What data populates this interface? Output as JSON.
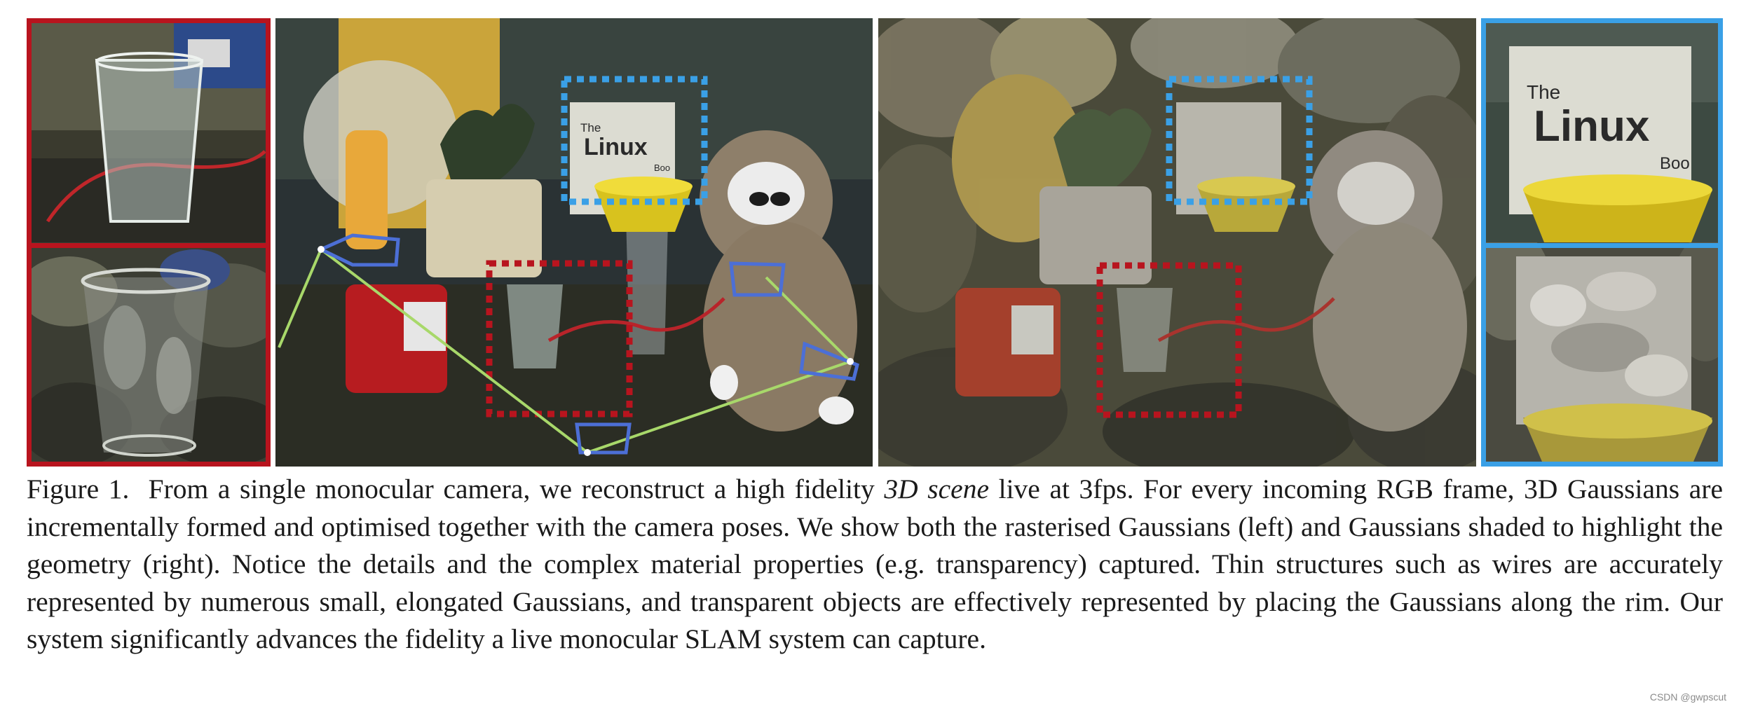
{
  "figure": {
    "label": "Figure 1.",
    "caption_pre": "From a single monocular camera, we reconstruct a high fidelity ",
    "caption_em": "3D scene",
    "caption_post": " live at 3fps.  For every incoming RGB frame, 3D Gaussians are incrementally formed and optimised together with the camera poses.  We show both the rasterised Gaussians (left) and Gaussians shaded to highlight the geometry (right).  Notice the details and the complex material properties (e.g. transparency) captured. Thin structures such as wires are accurately represented by numerous small, elongated Gaussians, and transparent objects are effectively represented by placing the Gaussians along the rim.  Our system significantly advances the fidelity a live monocular SLAM system can capture."
  },
  "book": {
    "line1": "The",
    "line2": "Linux",
    "line3": "Boo"
  },
  "watermark": "CSDN @gwpscut",
  "colors": {
    "highlight_red": "#b8141e",
    "highlight_blue": "#3aa0e6",
    "camera_frustum": "#4c6fd6",
    "trajectory": "#a8d86a",
    "caption_text": "#1a1a1a"
  }
}
